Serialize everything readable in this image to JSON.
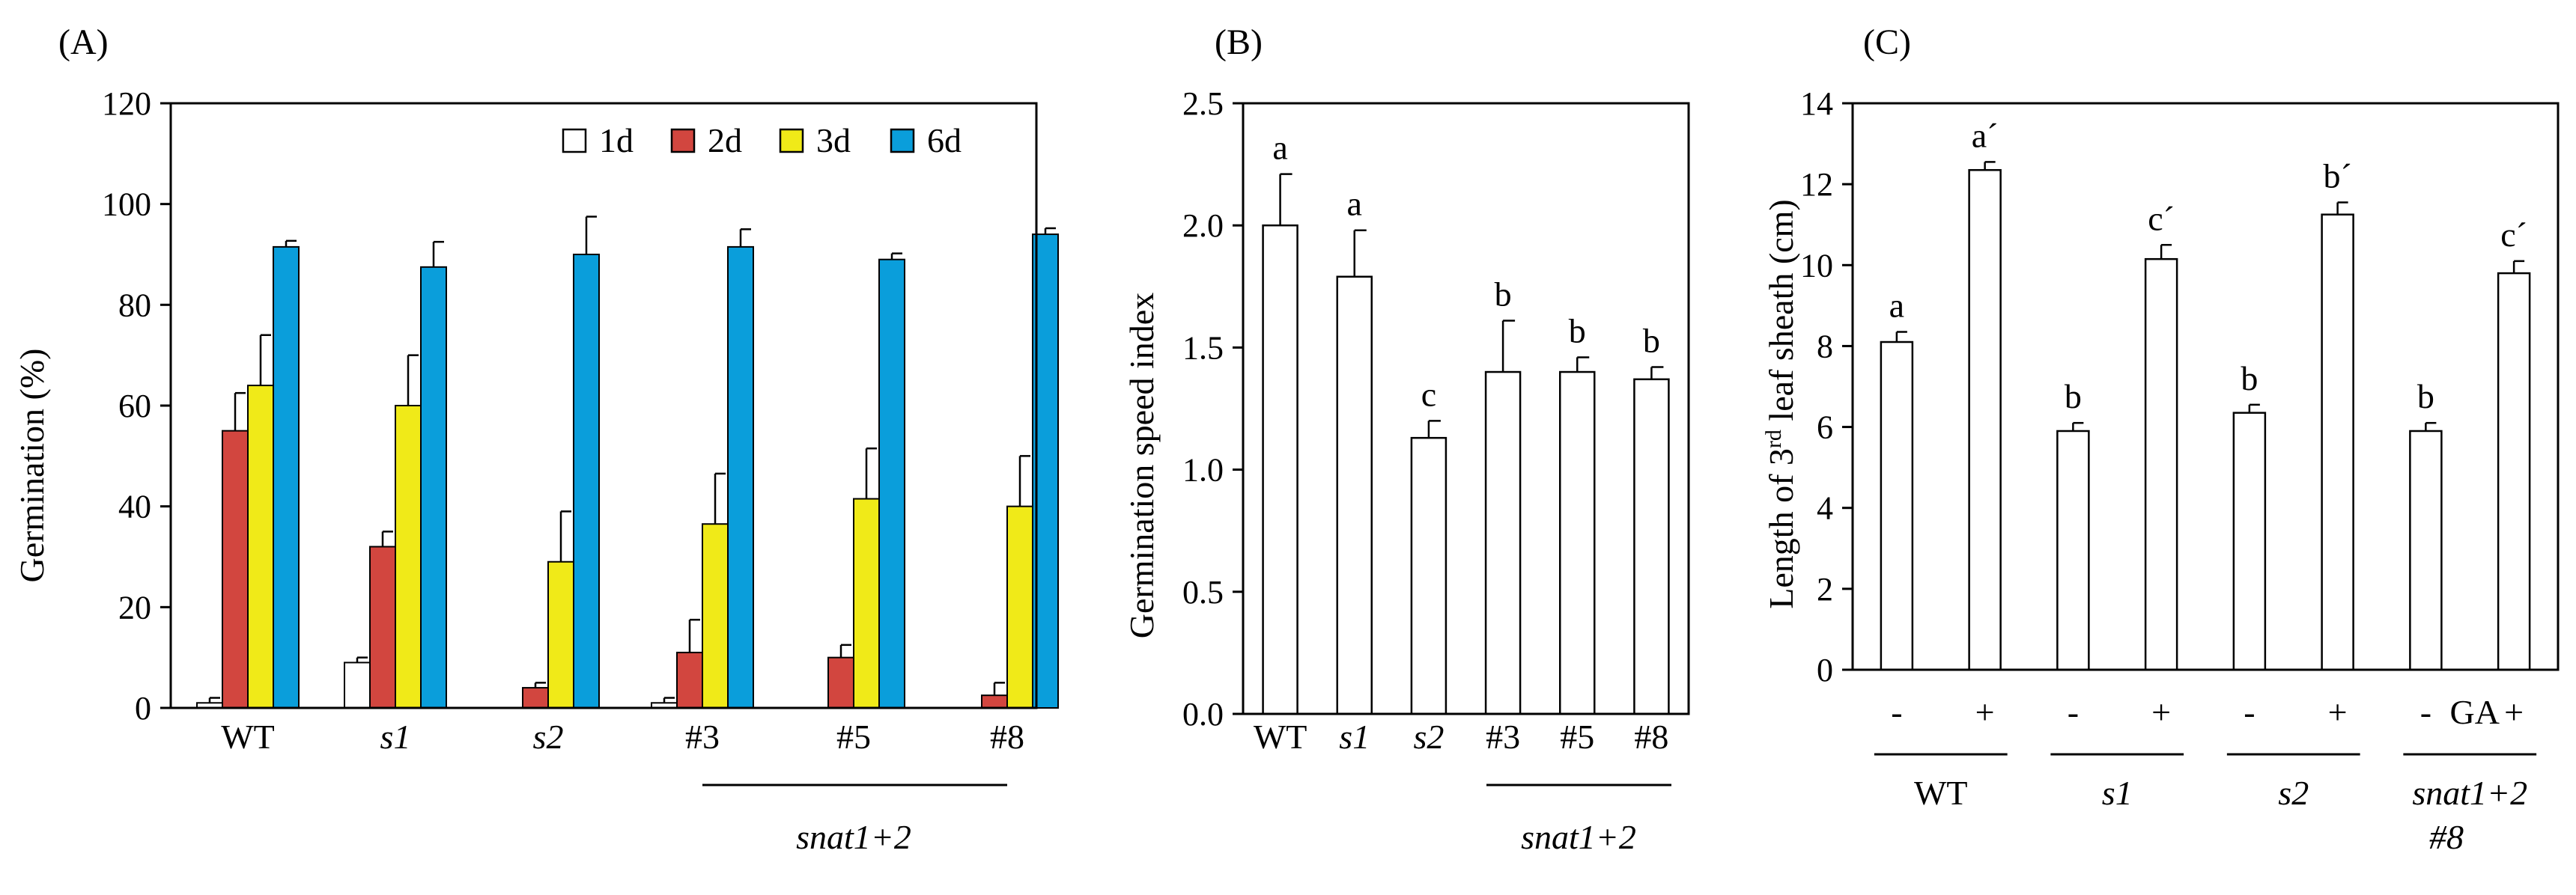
{
  "chart_data": [
    {
      "panel": "(A)",
      "type": "bar",
      "title": "",
      "xlabel": "",
      "ylabel": "Germination (%)",
      "ylim": [
        0,
        120
      ],
      "yticks": [
        "0",
        "20",
        "40",
        "60",
        "80",
        "100",
        "120"
      ],
      "categories": [
        "WT",
        "s1",
        "s2",
        "#3",
        "#5",
        "#8"
      ],
      "italic_categories": [
        "s1",
        "s2"
      ],
      "group_label": "snat1+2",
      "series": [
        {
          "name": "1d",
          "color": "#ffffff",
          "values": [
            1,
            9,
            0,
            1,
            0,
            0
          ],
          "errors": [
            1,
            1,
            0,
            1,
            0,
            0
          ]
        },
        {
          "name": "2d",
          "color": "#d2463f",
          "values": [
            55,
            32,
            4,
            11,
            10,
            2.5
          ],
          "errors": [
            7.5,
            3,
            1,
            6.5,
            2.5,
            2.5
          ]
        },
        {
          "name": "3d",
          "color": "#f0ea18",
          "values": [
            64,
            60,
            29,
            36.5,
            41.5,
            40
          ],
          "errors": [
            10,
            10,
            10,
            10,
            10,
            10
          ]
        },
        {
          "name": "6d",
          "color": "#0a9edb",
          "values": [
            91.5,
            87.5,
            90,
            91.5,
            89,
            94
          ],
          "errors": [
            1.2,
            5,
            7.5,
            3.5,
            1.2,
            1.2
          ]
        }
      ]
    },
    {
      "panel": "(B)",
      "type": "bar",
      "title": "",
      "xlabel": "",
      "ylabel": "Germination speed index",
      "ylim": [
        0,
        2.5
      ],
      "yticks": [
        "0.0",
        "0.5",
        "1.0",
        "1.5",
        "2.0",
        "2.5"
      ],
      "categories": [
        "WT",
        "s1",
        "s2",
        "#3",
        "#5",
        "#8"
      ],
      "italic_categories": [
        "s1",
        "s2"
      ],
      "group_label": "snat1+2",
      "values": [
        2.0,
        1.79,
        1.13,
        1.4,
        1.4,
        1.37
      ],
      "errors": [
        0.21,
        0.19,
        0.07,
        0.21,
        0.06,
        0.05
      ],
      "letters": [
        "a",
        "a",
        "c",
        "b",
        "b",
        "b"
      ]
    },
    {
      "panel": "(C)",
      "type": "bar",
      "title": "",
      "xlabel": "",
      "ylabel_parts": [
        "Length of 3",
        "rd",
        " leaf sheath (cm)"
      ],
      "ylim": [
        0,
        14
      ],
      "yticks": [
        "0",
        "2",
        "4",
        "6",
        "8",
        "10",
        "12",
        "14"
      ],
      "treatment_label": "GA",
      "bars": [
        {
          "genotype": "WT",
          "treatment": "-",
          "value": 8.1,
          "error": 0.25,
          "letter": "a"
        },
        {
          "genotype": "WT",
          "treatment": "+",
          "value": 12.35,
          "error": 0.2,
          "letter": "a´"
        },
        {
          "genotype": "s1",
          "treatment": "-",
          "value": 5.9,
          "error": 0.2,
          "letter": "b"
        },
        {
          "genotype": "s1",
          "treatment": "+",
          "value": 10.15,
          "error": 0.35,
          "letter": "c´"
        },
        {
          "genotype": "s2",
          "treatment": "-",
          "value": 6.35,
          "error": 0.2,
          "letter": "b"
        },
        {
          "genotype": "s2",
          "treatment": "+",
          "value": 11.25,
          "error": 0.3,
          "letter": "b´"
        },
        {
          "genotype": "snat1+2 #8",
          "treatment": "-",
          "value": 5.9,
          "error": 0.2,
          "letter": "b"
        },
        {
          "genotype": "snat1+2 #8",
          "treatment": "+",
          "value": 9.8,
          "error": 0.3,
          "letter": "c´"
        }
      ],
      "genotype_labels": [
        {
          "text": "WT",
          "italic": false
        },
        {
          "text": "s1",
          "italic": true
        },
        {
          "text": "s2",
          "italic": true
        },
        {
          "text": "snat1+2",
          "italic": true
        }
      ],
      "genotype_sublabel": "#8"
    }
  ]
}
